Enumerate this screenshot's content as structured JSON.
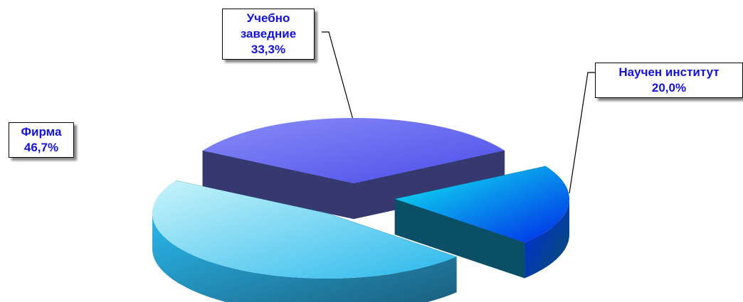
{
  "chart_data": {
    "type": "pie3d",
    "categories": [
      "Учебно заведние",
      "Научен институт",
      "Фирма"
    ],
    "values": [
      33.3,
      20.0,
      46.7
    ],
    "value_labels": [
      "33,3%",
      "20,0%",
      "46,7%"
    ],
    "colors": [
      [
        "#8a8cf8",
        "#4a4ee8",
        "#363870"
      ],
      [
        "#10f0f0",
        "#0028e8",
        "#0a4f66"
      ],
      [
        "#c8f4fa",
        "#2ab8ec",
        "#1a5a78"
      ]
    ]
  }
}
